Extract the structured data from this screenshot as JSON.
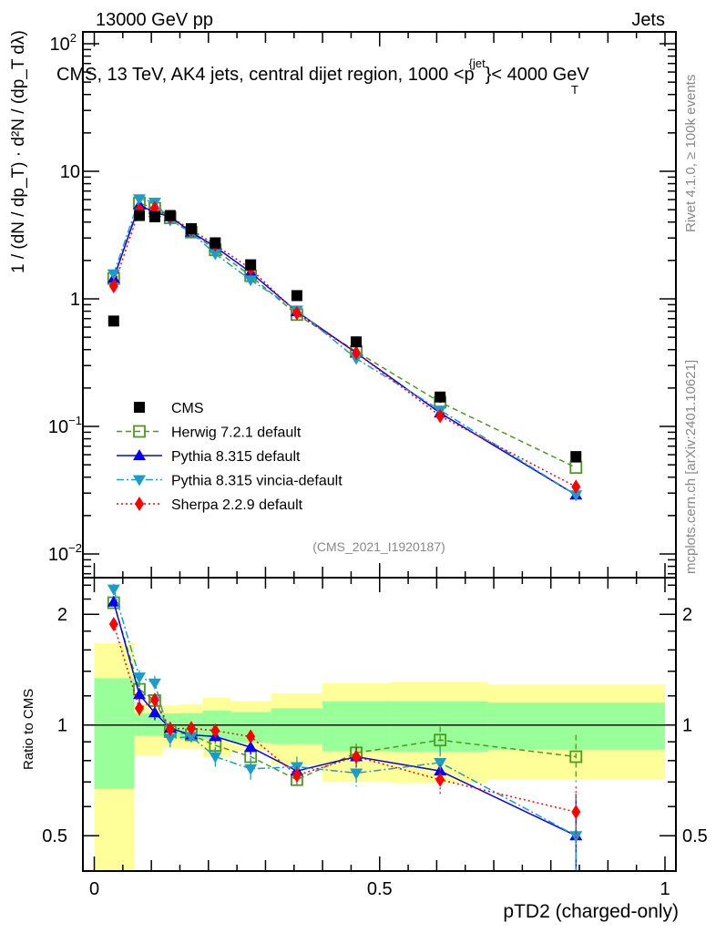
{
  "header": {
    "left": "13000 GeV pp",
    "right": "Jets"
  },
  "side_labels": {
    "rivet": "Rivet 4.1.0, ≥ 100k events",
    "mcplots": "mcplots.cern.ch [arXiv:2401.10621]"
  },
  "analysis_id": "(CMS_2021_I1920187)",
  "plot_title": {
    "main": "CMS, 13 TeV, AK4 jets, central dijet region, 1000 <p",
    "sup": "{jet",
    "sub": "T",
    "tail": "}< 4000 GeV"
  },
  "chart_data": [
    {
      "type": "scatter",
      "panel": "main",
      "ylabel": "1 / (dN / dp_T) · d²N / (dp_T dλ)",
      "yscale": "log",
      "ylim": [
        0.0065,
        122
      ],
      "xlim": [
        -0.02,
        1.02
      ],
      "ytick_labels": [
        {
          "v": 100,
          "base": "10",
          "exp": "2"
        },
        {
          "v": 10,
          "base": "10",
          "exp": ""
        },
        {
          "v": 1,
          "base": "1",
          "exp": ""
        },
        {
          "v": 0.1,
          "base": "10",
          "exp": "−1"
        },
        {
          "v": 0.01,
          "base": "10",
          "exp": "−2"
        }
      ],
      "legend_position": "lower-left",
      "x": [
        0.034,
        0.079,
        0.106,
        0.133,
        0.17,
        0.212,
        0.274,
        0.355,
        0.459,
        0.606,
        0.844
      ],
      "bin_edges": [
        0,
        0.07,
        0.09,
        0.12,
        0.15,
        0.19,
        0.24,
        0.31,
        0.4,
        0.52,
        0.69,
        1.0
      ],
      "data": {
        "name": "CMS",
        "color": "#000000",
        "values": [
          0.67,
          4.5,
          4.4,
          4.5,
          3.55,
          2.75,
          1.85,
          1.06,
          0.46,
          0.17,
          0.058
        ]
      },
      "series": [
        {
          "name": "Herwig 7.2.1 default",
          "color": "#4c9a1c",
          "marker": "open-square",
          "dash": "6,4",
          "ratio": [
            2.15,
            1.25,
            1.165,
            0.96,
            0.94,
            0.88,
            0.82,
            0.71,
            0.84,
            0.91,
            0.82
          ],
          "ratio_err": [
            0.05,
            0.06,
            0.05,
            0.04,
            0.03,
            0.04,
            0.04,
            0.04,
            0.05,
            0.08,
            0.12
          ]
        },
        {
          "name": "Pythia 8.315 default",
          "color": "#0000ff",
          "marker": "triangle-up",
          "dash": "",
          "ratio": [
            2.16,
            1.21,
            1.08,
            0.98,
            0.94,
            0.93,
            0.87,
            0.75,
            0.82,
            0.75,
            0.5
          ],
          "ratio_err": [
            0.05,
            0.05,
            0.05,
            0.04,
            0.03,
            0.03,
            0.04,
            0.04,
            0.05,
            0.06,
            0.15
          ]
        },
        {
          "name": "Pythia 8.315 vincia-default",
          "color": "#1a9ec9",
          "marker": "triangle-down",
          "dash": "8,3,2,3",
          "ratio": [
            2.34,
            1.35,
            1.3,
            0.92,
            0.93,
            0.82,
            0.76,
            0.77,
            0.74,
            0.79,
            0.5
          ],
          "ratio_err": [
            0.08,
            0.06,
            0.06,
            0.05,
            0.03,
            0.05,
            0.05,
            0.05,
            0.06,
            0.07,
            0.15
          ]
        },
        {
          "name": "Sherpa 2.2.9 default",
          "color": "#ff0000",
          "marker": "diamond",
          "dash": "2,3",
          "ratio": [
            1.88,
            1.11,
            1.17,
            0.976,
            0.98,
            0.965,
            0.93,
            0.73,
            0.82,
            0.71,
            0.58
          ],
          "ratio_err": [
            0.06,
            0.05,
            0.04,
            0.03,
            0.03,
            0.03,
            0.03,
            0.04,
            0.05,
            0.07,
            0.1
          ]
        }
      ]
    },
    {
      "type": "scatter",
      "panel": "ratio",
      "ylabel": "Ratio to CMS",
      "xlabel": "pTD2 (charged-only)",
      "yscale": "log",
      "ylim": [
        0.4,
        2.5
      ],
      "ytick_labels": [
        {
          "v": 2,
          "label": "2"
        },
        {
          "v": 1,
          "label": "1"
        },
        {
          "v": 0.5,
          "label": "0.5"
        }
      ],
      "xtick_labels": [
        {
          "v": 0,
          "label": "0"
        },
        {
          "v": 0.5,
          "label": "0.5"
        },
        {
          "v": 1,
          "label": "1"
        }
      ],
      "band_inner": {
        "color": "#99ff99",
        "lo": [
          0.67,
          0.934,
          0.934,
          0.93,
          0.913,
          0.913,
          0.896,
          0.887,
          0.848,
          0.846,
          0.857
        ],
        "hi": [
          1.34,
          1.077,
          1.077,
          1.075,
          1.077,
          1.094,
          1.083,
          1.11,
          1.16,
          1.16,
          1.15
        ]
      },
      "band_outer": {
        "color": "#ffff99",
        "lo": [
          0.3,
          0.826,
          0.826,
          0.867,
          0.86,
          0.818,
          0.85,
          0.777,
          0.7,
          0.695,
          0.71
        ],
        "hi": [
          1.67,
          1.14,
          1.14,
          1.13,
          1.14,
          1.185,
          1.16,
          1.22,
          1.3,
          1.31,
          1.29
        ]
      }
    }
  ]
}
